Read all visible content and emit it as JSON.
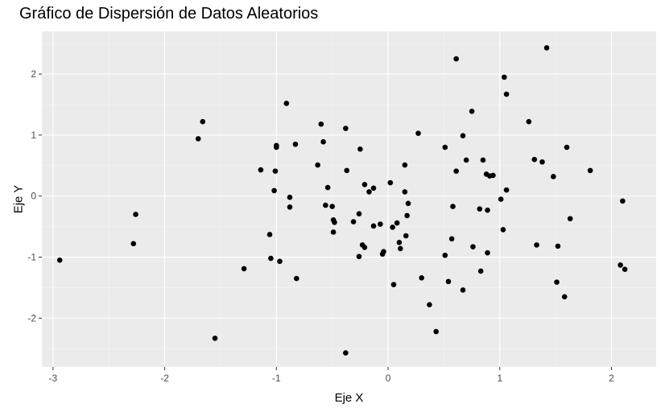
{
  "colors": {
    "panel_background": "#ebebeb",
    "grid_major": "#ffffff",
    "grid_minor": "#f5f5f5",
    "point": "#000000",
    "tick_text": "#4d4d4d",
    "tick_mark": "#333333"
  },
  "chart_data": {
    "type": "scatter",
    "title": "Gráfico de Dispersión de Datos Aleatorios",
    "xlabel": "Eje X",
    "ylabel": "Eje Y",
    "xlim": [
      -3.1,
      2.4
    ],
    "ylim": [
      -2.8,
      2.7
    ],
    "x_ticks": [
      -3,
      -2,
      -1,
      0,
      1,
      2
    ],
    "y_ticks": [
      -2,
      -1,
      0,
      1,
      2
    ],
    "x_tick_labels": [
      "-3",
      "-2",
      "-1",
      "0",
      "1",
      "2"
    ],
    "y_tick_labels": [
      "-2",
      "-1",
      "0",
      "1",
      "2"
    ],
    "grid": true,
    "legend": "none",
    "points": [
      {
        "x": -2.94,
        "y": -1.05
      },
      {
        "x": -2.26,
        "y": -0.3
      },
      {
        "x": -2.28,
        "y": -0.78
      },
      {
        "x": -1.7,
        "y": 0.94
      },
      {
        "x": -1.66,
        "y": 1.22
      },
      {
        "x": -1.55,
        "y": -2.33
      },
      {
        "x": -1.29,
        "y": -1.19
      },
      {
        "x": -1.14,
        "y": 0.43
      },
      {
        "x": -1.06,
        "y": -0.63
      },
      {
        "x": -1.05,
        "y": -1.02
      },
      {
        "x": -1.02,
        "y": 0.09
      },
      {
        "x": -1.01,
        "y": 0.41
      },
      {
        "x": -1.0,
        "y": 0.8
      },
      {
        "x": -1.0,
        "y": 0.83
      },
      {
        "x": -0.97,
        "y": -1.07
      },
      {
        "x": -0.91,
        "y": 1.52
      },
      {
        "x": -0.88,
        "y": -0.02
      },
      {
        "x": -0.88,
        "y": -0.18
      },
      {
        "x": -0.83,
        "y": 0.85
      },
      {
        "x": -0.82,
        "y": -1.35
      },
      {
        "x": -0.63,
        "y": 0.51
      },
      {
        "x": -0.6,
        "y": 1.18
      },
      {
        "x": -0.58,
        "y": 0.89
      },
      {
        "x": -0.56,
        "y": -0.15
      },
      {
        "x": -0.54,
        "y": 0.14
      },
      {
        "x": -0.5,
        "y": -0.17
      },
      {
        "x": -0.49,
        "y": -0.39
      },
      {
        "x": -0.48,
        "y": -0.43
      },
      {
        "x": -0.49,
        "y": -0.59
      },
      {
        "x": -0.38,
        "y": 1.11
      },
      {
        "x": -0.37,
        "y": 0.42
      },
      {
        "x": -0.31,
        "y": -0.42
      },
      {
        "x": -0.26,
        "y": -0.29
      },
      {
        "x": -0.25,
        "y": 0.77
      },
      {
        "x": -0.26,
        "y": -0.99
      },
      {
        "x": -0.23,
        "y": -0.8
      },
      {
        "x": -0.21,
        "y": 0.19
      },
      {
        "x": -0.21,
        "y": -0.84
      },
      {
        "x": -0.17,
        "y": 0.07
      },
      {
        "x": -0.13,
        "y": 0.13
      },
      {
        "x": -0.13,
        "y": -0.49
      },
      {
        "x": -0.07,
        "y": -0.46
      },
      {
        "x": -0.05,
        "y": -0.95
      },
      {
        "x": -0.04,
        "y": -0.91
      },
      {
        "x": -0.38,
        "y": -2.57
      },
      {
        "x": 0.02,
        "y": 0.22
      },
      {
        "x": 0.04,
        "y": -0.51
      },
      {
        "x": 0.05,
        "y": -1.45
      },
      {
        "x": 0.08,
        "y": -0.44
      },
      {
        "x": 0.1,
        "y": -0.76
      },
      {
        "x": 0.11,
        "y": -0.86
      },
      {
        "x": 0.15,
        "y": 0.51
      },
      {
        "x": 0.15,
        "y": 0.07
      },
      {
        "x": 0.17,
        "y": -0.32
      },
      {
        "x": 0.18,
        "y": -0.12
      },
      {
        "x": 0.16,
        "y": -0.65
      },
      {
        "x": 0.27,
        "y": 1.03
      },
      {
        "x": 0.3,
        "y": -1.34
      },
      {
        "x": 0.37,
        "y": -1.78
      },
      {
        "x": 0.43,
        "y": -2.22
      },
      {
        "x": 0.51,
        "y": 0.8
      },
      {
        "x": 0.51,
        "y": -0.97
      },
      {
        "x": 0.54,
        "y": -1.4
      },
      {
        "x": 0.57,
        "y": -0.7
      },
      {
        "x": 0.58,
        "y": -0.17
      },
      {
        "x": 0.61,
        "y": 0.41
      },
      {
        "x": 0.61,
        "y": 2.25
      },
      {
        "x": 0.67,
        "y": 0.99
      },
      {
        "x": 0.67,
        "y": -1.54
      },
      {
        "x": 0.7,
        "y": 0.59
      },
      {
        "x": 0.75,
        "y": 1.39
      },
      {
        "x": 0.76,
        "y": -0.83
      },
      {
        "x": 0.82,
        "y": -0.21
      },
      {
        "x": 0.83,
        "y": -1.23
      },
      {
        "x": 0.85,
        "y": 0.59
      },
      {
        "x": 0.88,
        "y": 0.36
      },
      {
        "x": 0.89,
        "y": -0.23
      },
      {
        "x": 0.89,
        "y": -0.93
      },
      {
        "x": 0.91,
        "y": 0.33
      },
      {
        "x": 0.94,
        "y": 0.34
      },
      {
        "x": 1.01,
        "y": -0.05
      },
      {
        "x": 1.03,
        "y": -0.55
      },
      {
        "x": 1.04,
        "y": 1.95
      },
      {
        "x": 1.06,
        "y": 1.67
      },
      {
        "x": 1.06,
        "y": 0.1
      },
      {
        "x": 1.26,
        "y": 1.22
      },
      {
        "x": 1.31,
        "y": 0.6
      },
      {
        "x": 1.33,
        "y": -0.8
      },
      {
        "x": 1.38,
        "y": 0.56
      },
      {
        "x": 1.42,
        "y": 2.43
      },
      {
        "x": 1.48,
        "y": 0.32
      },
      {
        "x": 1.51,
        "y": -1.41
      },
      {
        "x": 1.52,
        "y": -0.82
      },
      {
        "x": 1.58,
        "y": -1.65
      },
      {
        "x": 1.6,
        "y": 0.8
      },
      {
        "x": 1.63,
        "y": -0.37
      },
      {
        "x": 1.81,
        "y": 0.42
      },
      {
        "x": 2.08,
        "y": -1.13
      },
      {
        "x": 2.1,
        "y": -0.08
      },
      {
        "x": 2.12,
        "y": -1.2
      }
    ]
  }
}
